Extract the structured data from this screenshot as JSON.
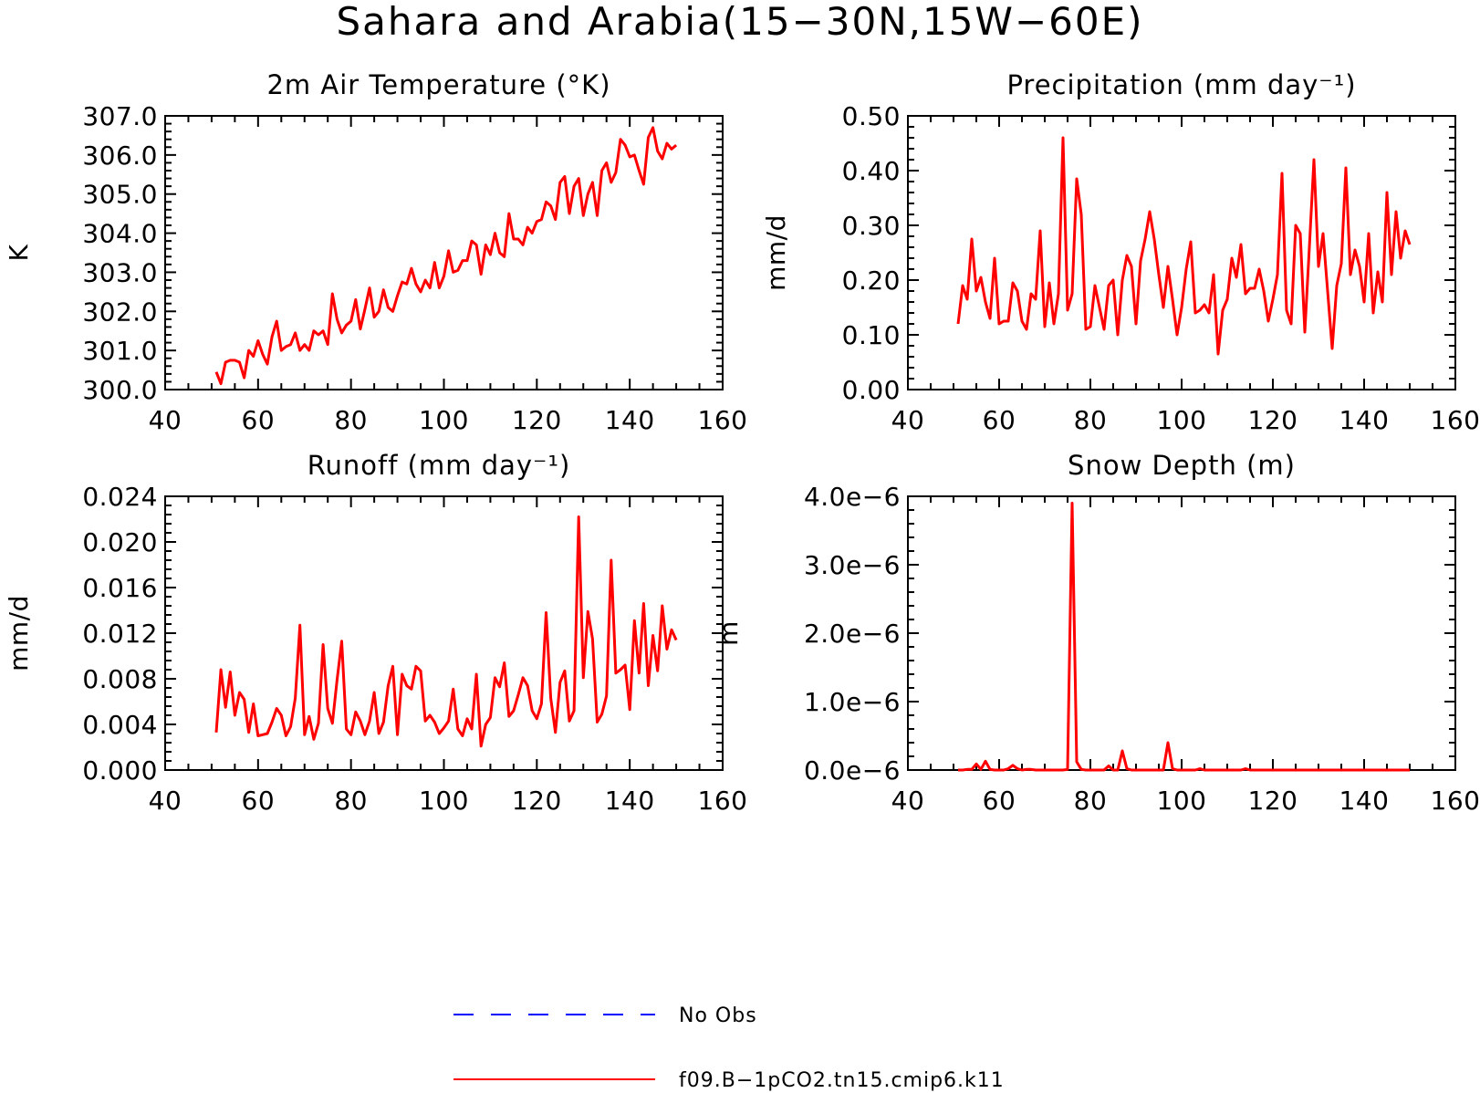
{
  "title": "Sahara and Arabia(15−30N,15W−60E)",
  "colors": {
    "model": "#ff0000",
    "obs": "#0000ff",
    "axis": "#000000"
  },
  "legend": [
    {
      "label": "No Obs",
      "style": "dashed",
      "color": "#0000ff"
    },
    {
      "label": "f09.B−1pCO2.tn15.cmip6.k11",
      "style": "solid",
      "color": "#ff0000"
    }
  ],
  "chart_data": [
    {
      "type": "line",
      "title": "2m Air Temperature (°K)",
      "ylabel": "K",
      "xlim": [
        40,
        160
      ],
      "ylim": [
        300.0,
        307.0
      ],
      "xticks": [
        "40",
        "60",
        "80",
        "100",
        "120",
        "140",
        "160"
      ],
      "yticks": [
        "300.0",
        "301.0",
        "302.0",
        "303.0",
        "304.0",
        "305.0",
        "306.0",
        "307.0"
      ],
      "series": [
        {
          "name": "f09.B−1pCO2.tn15.cmip6.k11",
          "x_start": 51,
          "values": [
            300.45,
            300.15,
            300.7,
            300.75,
            300.75,
            300.7,
            300.3,
            301.0,
            300.85,
            301.25,
            300.9,
            300.65,
            301.35,
            301.75,
            301.0,
            301.1,
            301.15,
            301.45,
            301.0,
            301.15,
            301.0,
            301.5,
            301.4,
            301.5,
            301.15,
            302.45,
            301.8,
            301.45,
            301.65,
            301.75,
            302.3,
            301.55,
            302.05,
            302.6,
            301.85,
            302.0,
            302.55,
            302.1,
            302.0,
            302.4,
            302.75,
            302.7,
            303.1,
            302.7,
            302.5,
            302.8,
            302.6,
            303.25,
            302.6,
            302.9,
            303.55,
            303.0,
            303.05,
            303.3,
            303.3,
            303.8,
            303.7,
            302.95,
            303.7,
            303.45,
            304.0,
            303.5,
            303.4,
            304.5,
            303.85,
            303.85,
            303.7,
            304.15,
            304.0,
            304.3,
            304.35,
            304.8,
            304.7,
            304.35,
            305.3,
            305.45,
            304.5,
            305.2,
            305.4,
            304.45,
            305.0,
            305.3,
            304.45,
            305.6,
            305.8,
            305.3,
            305.55,
            306.4,
            306.25,
            305.95,
            306.0,
            305.6,
            305.25,
            306.45,
            306.7,
            306.1,
            305.9,
            306.3,
            306.15,
            306.25
          ]
        }
      ]
    },
    {
      "type": "line",
      "title": "Precipitation (mm day⁻¹)",
      "ylabel": "mm/d",
      "xlim": [
        40,
        160
      ],
      "ylim": [
        0.0,
        0.5
      ],
      "xticks": [
        "40",
        "60",
        "80",
        "100",
        "120",
        "140",
        "160"
      ],
      "yticks": [
        "0.00",
        "0.10",
        "0.20",
        "0.30",
        "0.40",
        "0.50"
      ],
      "series": [
        {
          "name": "f09.B−1pCO2.tn15.cmip6.k11",
          "x_start": 51,
          "values": [
            0.12,
            0.19,
            0.165,
            0.275,
            0.18,
            0.205,
            0.16,
            0.13,
            0.24,
            0.12,
            0.125,
            0.125,
            0.195,
            0.18,
            0.125,
            0.11,
            0.175,
            0.165,
            0.29,
            0.115,
            0.195,
            0.12,
            0.175,
            0.46,
            0.145,
            0.175,
            0.385,
            0.32,
            0.11,
            0.115,
            0.19,
            0.15,
            0.11,
            0.19,
            0.2,
            0.1,
            0.2,
            0.245,
            0.225,
            0.12,
            0.235,
            0.275,
            0.325,
            0.275,
            0.21,
            0.15,
            0.225,
            0.165,
            0.1,
            0.15,
            0.22,
            0.27,
            0.14,
            0.145,
            0.155,
            0.14,
            0.21,
            0.065,
            0.145,
            0.165,
            0.24,
            0.205,
            0.265,
            0.175,
            0.185,
            0.185,
            0.22,
            0.18,
            0.125,
            0.165,
            0.21,
            0.395,
            0.145,
            0.12,
            0.3,
            0.285,
            0.105,
            0.26,
            0.42,
            0.225,
            0.285,
            0.18,
            0.075,
            0.19,
            0.23,
            0.405,
            0.21,
            0.255,
            0.225,
            0.16,
            0.285,
            0.14,
            0.215,
            0.16,
            0.36,
            0.21,
            0.325,
            0.24,
            0.29,
            0.265
          ]
        }
      ]
    },
    {
      "type": "line",
      "title": "Runoff (mm day⁻¹)",
      "ylabel": "mm/d",
      "xlim": [
        40,
        160
      ],
      "ylim": [
        0.0,
        0.024
      ],
      "xticks": [
        "40",
        "60",
        "80",
        "100",
        "120",
        "140",
        "160"
      ],
      "yticks": [
        "0.000",
        "0.004",
        "0.008",
        "0.012",
        "0.016",
        "0.020",
        "0.024"
      ],
      "series": [
        {
          "name": "f09.B−1pCO2.tn15.cmip6.k11",
          "x_start": 51,
          "values": [
            0.0033,
            0.0088,
            0.0055,
            0.0086,
            0.0048,
            0.0068,
            0.0062,
            0.0033,
            0.0058,
            0.003,
            0.0031,
            0.0032,
            0.0042,
            0.0054,
            0.0048,
            0.003,
            0.0038,
            0.0063,
            0.0127,
            0.0031,
            0.0047,
            0.0027,
            0.0041,
            0.011,
            0.0054,
            0.0041,
            0.0079,
            0.0113,
            0.0036,
            0.0031,
            0.0051,
            0.0043,
            0.0031,
            0.0043,
            0.0068,
            0.0032,
            0.0042,
            0.0074,
            0.0091,
            0.0031,
            0.0084,
            0.0074,
            0.0071,
            0.0091,
            0.0087,
            0.0043,
            0.0048,
            0.0042,
            0.0032,
            0.0037,
            0.0043,
            0.0071,
            0.0036,
            0.003,
            0.0045,
            0.0036,
            0.0084,
            0.0021,
            0.004,
            0.0046,
            0.0081,
            0.0073,
            0.0094,
            0.0047,
            0.0052,
            0.0066,
            0.0081,
            0.0074,
            0.0052,
            0.0045,
            0.0058,
            0.0138,
            0.0063,
            0.0033,
            0.0077,
            0.0087,
            0.0043,
            0.0052,
            0.0222,
            0.0081,
            0.0139,
            0.0115,
            0.0042,
            0.0049,
            0.0065,
            0.0184,
            0.0085,
            0.0088,
            0.0092,
            0.0053,
            0.0131,
            0.0085,
            0.0146,
            0.0074,
            0.0118,
            0.0087,
            0.0144,
            0.0106,
            0.0123,
            0.0114
          ]
        }
      ]
    },
    {
      "type": "line",
      "title": "Snow Depth (m)",
      "ylabel": "m",
      "xlim": [
        40,
        160
      ],
      "ylim": [
        0.0,
        4e-06
      ],
      "xticks": [
        "40",
        "60",
        "80",
        "100",
        "120",
        "140",
        "160"
      ],
      "yticks": [
        "0.0e−6",
        "1.0e−6",
        "2.0e−6",
        "3.0e−6",
        "4.0e−6"
      ],
      "series": [
        {
          "name": "f09.B−1pCO2.tn15.cmip6.k11",
          "x_start": 51,
          "values": [
            0,
            0,
            1e-08,
            1e-08,
            9e-08,
            1e-08,
            1.3e-07,
            1e-08,
            0,
            0,
            0,
            2e-08,
            7e-08,
            2e-08,
            0,
            1e-08,
            1e-08,
            0,
            0,
            0,
            0,
            0,
            0,
            0,
            1e-08,
            3.9e-06,
            1.2e-07,
            1e-08,
            0,
            0,
            0,
            0,
            0,
            6e-08,
            0,
            0,
            2.8e-07,
            2e-08,
            0,
            0,
            0,
            0,
            0,
            0,
            0,
            0,
            4e-07,
            2e-08,
            0,
            0,
            0,
            0,
            0,
            2e-08,
            0,
            0,
            0,
            0,
            0,
            0,
            0,
            0,
            0,
            2e-08,
            0,
            0,
            0,
            0,
            0,
            0,
            0,
            0,
            0,
            0,
            0,
            0,
            0,
            0,
            0,
            0,
            0,
            0,
            0,
            0,
            0,
            0,
            0,
            0,
            0,
            0,
            0,
            0,
            0,
            0,
            0,
            0,
            0,
            0,
            0,
            0
          ]
        }
      ]
    }
  ]
}
